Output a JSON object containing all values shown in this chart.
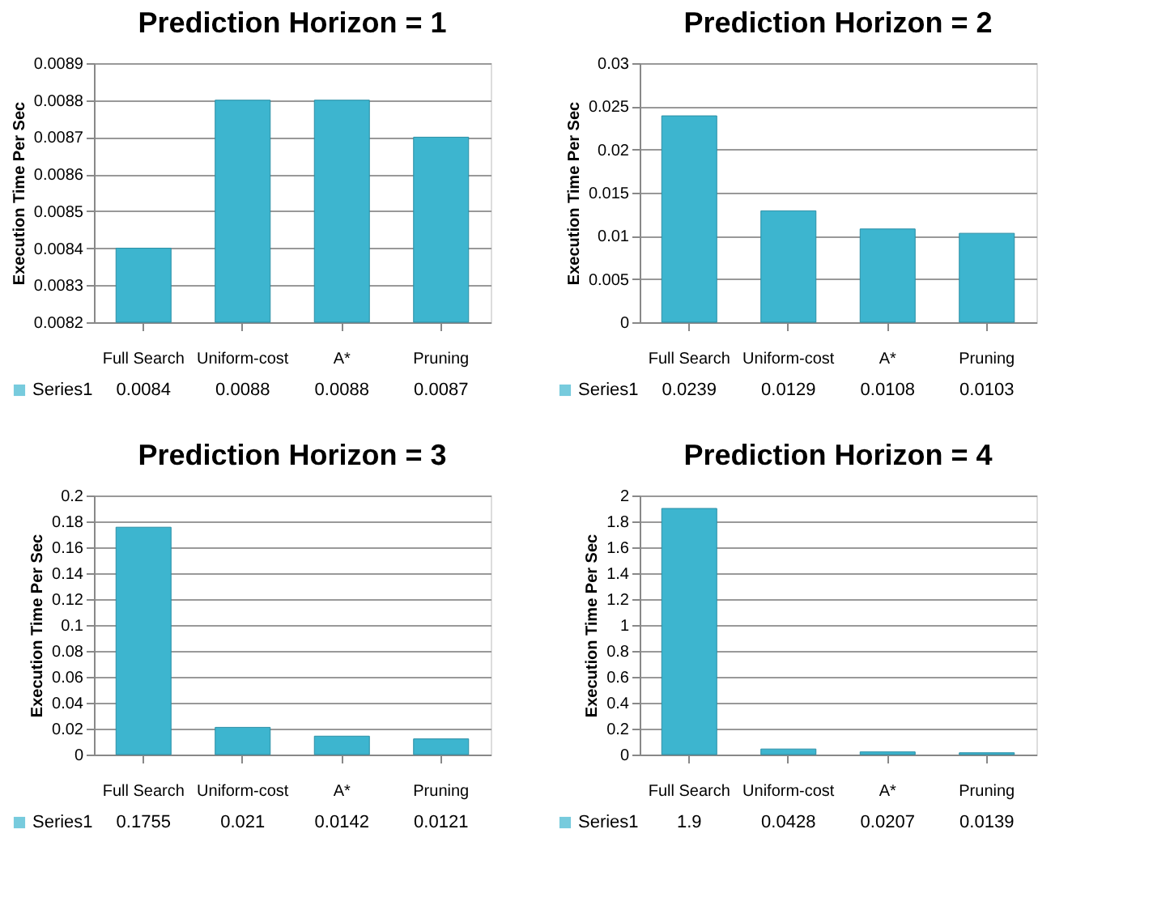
{
  "chart_data": [
    {
      "type": "bar",
      "title": "Prediction Horizon = 1",
      "ylabel": "Execution Time Per Sec",
      "categories": [
        "Full Search",
        "Uniform-cost",
        "A*",
        "Pruning"
      ],
      "series": [
        {
          "name": "Series1",
          "color": "#3db5cf",
          "values": [
            0.0084,
            0.0088,
            0.0088,
            0.0087
          ]
        }
      ],
      "ylim": [
        0.0082,
        0.0089
      ],
      "yticks": [
        0.0082,
        0.0083,
        0.0084,
        0.0085,
        0.0086,
        0.0087,
        0.0088,
        0.0089
      ],
      "grid": "y",
      "data_labels": true,
      "legend": "bottom left"
    },
    {
      "type": "bar",
      "title": "Prediction Horizon = 2",
      "ylabel": "Execution Time Per Sec",
      "categories": [
        "Full Search",
        "Uniform-cost",
        "A*",
        "Pruning"
      ],
      "series": [
        {
          "name": "Series1",
          "color": "#3db5cf",
          "values": [
            0.0239,
            0.0129,
            0.0108,
            0.0103
          ]
        }
      ],
      "ylim": [
        0,
        0.03
      ],
      "yticks": [
        0,
        0.005,
        0.01,
        0.015,
        0.02,
        0.025,
        0.03
      ],
      "grid": "y",
      "data_labels": true,
      "legend": "bottom left"
    },
    {
      "type": "bar",
      "title": "Prediction Horizon = 3",
      "ylabel": "Execution Time Per Sec",
      "categories": [
        "Full Search",
        "Uniform-cost",
        "A*",
        "Pruning"
      ],
      "series": [
        {
          "name": "Series1",
          "color": "#3db5cf",
          "values": [
            0.1755,
            0.021,
            0.0142,
            0.0121
          ]
        }
      ],
      "ylim": [
        0,
        0.2
      ],
      "yticks": [
        0,
        0.02,
        0.04,
        0.06,
        0.08,
        0.1,
        0.12,
        0.14,
        0.16,
        0.18,
        0.2
      ],
      "grid": "y",
      "data_labels": true,
      "legend": "bottom left"
    },
    {
      "type": "bar",
      "title": "Prediction Horizon = 4",
      "ylabel": "Execution Time Per Sec",
      "categories": [
        "Full Search",
        "Uniform-cost",
        "A*",
        "Pruning"
      ],
      "series": [
        {
          "name": "Series1",
          "color": "#3db5cf",
          "values": [
            1.9,
            0.0428,
            0.0207,
            0.0139
          ]
        }
      ],
      "ylim": [
        0,
        2
      ],
      "yticks": [
        0,
        0.2,
        0.4,
        0.6,
        0.8,
        1,
        1.2,
        1.4,
        1.6,
        1.8,
        2
      ],
      "grid": "y",
      "data_labels": true,
      "legend": "bottom left"
    }
  ]
}
